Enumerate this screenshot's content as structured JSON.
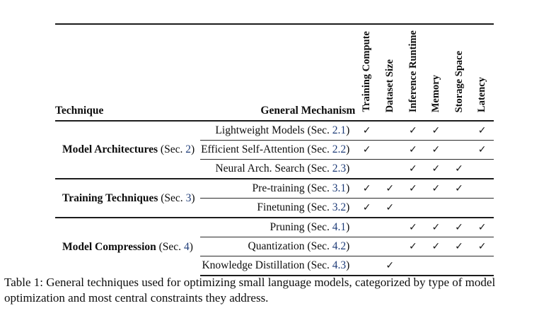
{
  "colors": {
    "link_blue": "#1e3c78",
    "rule_black": "#1c1c1c"
  },
  "table": {
    "col_headers": {
      "technique": "Technique",
      "mechanism": "General Mechanism",
      "constraints": [
        "Training Compute",
        "Dataset Size",
        "Inference Runtime",
        "Memory",
        "Storage Space",
        "Latency"
      ]
    },
    "check_glyph": "✓",
    "groups": [
      {
        "name": "Model Architectures",
        "sec_pre": " (Sec. ",
        "sec_ref": "2",
        "sec_post": ")",
        "rows": [
          {
            "pre": "Lightweight Models (Sec. ",
            "ref": "2.1",
            "post": ")",
            "checks": [
              "✓",
              "",
              "✓",
              "✓",
              "",
              "✓"
            ]
          },
          {
            "pre": "Efficient Self-Attention (Sec. ",
            "ref": "2.2",
            "post": ")",
            "checks": [
              "✓",
              "",
              "✓",
              "✓",
              "",
              "✓"
            ]
          },
          {
            "pre": "Neural Arch. Search (Sec. ",
            "ref": "2.3",
            "post": ")",
            "checks": [
              "",
              "",
              "✓",
              "✓",
              "✓",
              ""
            ]
          }
        ]
      },
      {
        "name": "Training Techniques",
        "sec_pre": " (Sec. ",
        "sec_ref": "3",
        "sec_post": ")",
        "rows": [
          {
            "pre": "Pre-training (Sec. ",
            "ref": "3.1",
            "post": ")",
            "checks": [
              "✓",
              "✓",
              "✓",
              "✓",
              "✓",
              ""
            ]
          },
          {
            "pre": "Finetuning (Sec. ",
            "ref": "3.2",
            "post": ")",
            "checks": [
              "✓",
              "✓",
              "",
              "",
              "",
              ""
            ]
          }
        ]
      },
      {
        "name": "Model Compression",
        "sec_pre": " (Sec. ",
        "sec_ref": "4",
        "sec_post": ")",
        "rows": [
          {
            "pre": "Pruning (Sec. ",
            "ref": "4.1",
            "post": ")",
            "checks": [
              "",
              "",
              "✓",
              "✓",
              "✓",
              "✓"
            ]
          },
          {
            "pre": "Quantization (Sec. ",
            "ref": "4.2",
            "post": ")",
            "checks": [
              "",
              "",
              "✓",
              "✓",
              "✓",
              "✓"
            ]
          },
          {
            "pre": "Knowledge Distillation (Sec. ",
            "ref": "4.3",
            "post": ")",
            "checks": [
              "",
              "✓",
              "",
              "",
              "",
              ""
            ]
          }
        ]
      }
    ]
  },
  "caption": "Table 1: General techniques used for optimizing small language models, categorized by type of model optimization and most central constraints they address."
}
